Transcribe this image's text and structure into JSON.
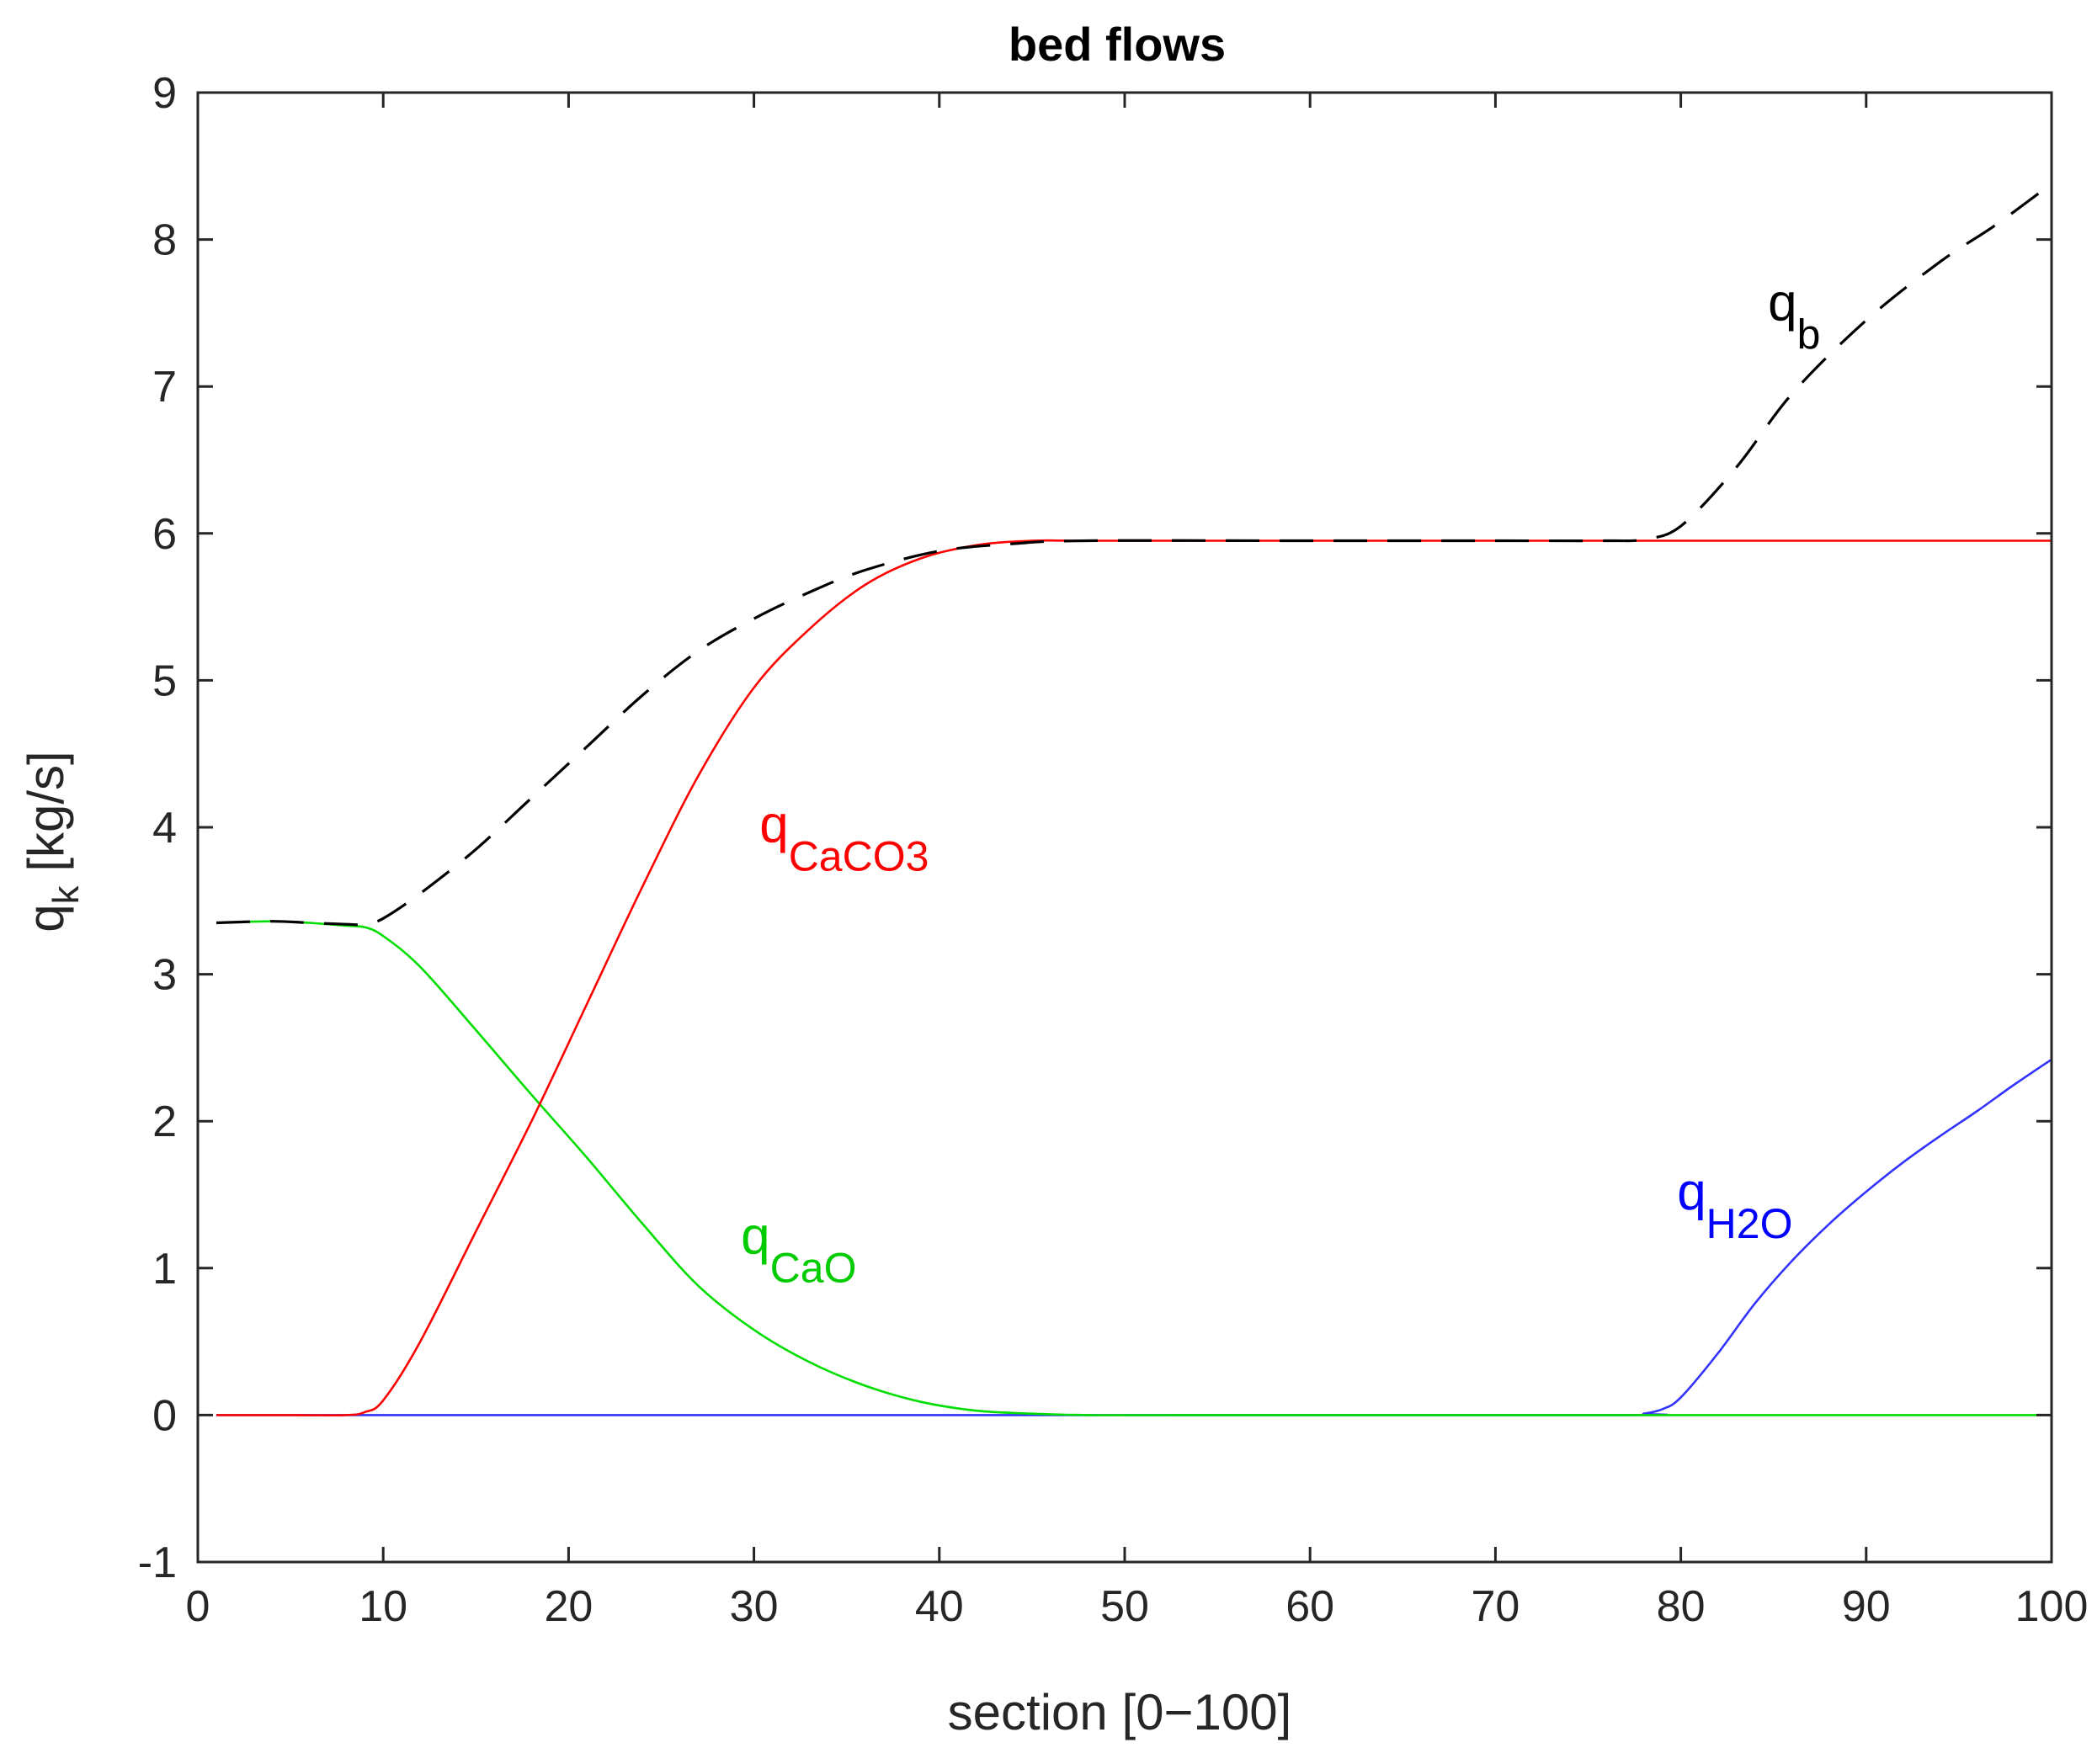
{
  "chart_data": {
    "type": "line",
    "title": "bed flows",
    "xlabel": "section [0−100]",
    "ylabel": {
      "main": "q",
      "sub": "k",
      "rest": " [kg/s]"
    },
    "xlim": [
      0,
      100
    ],
    "ylim": [
      -1,
      9
    ],
    "xticks": [
      0,
      10,
      20,
      30,
      40,
      50,
      60,
      70,
      80,
      90,
      100
    ],
    "yticks": [
      -1,
      0,
      1,
      2,
      3,
      4,
      5,
      6,
      7,
      8,
      9
    ],
    "xtick_labels": [
      "0",
      "10",
      "20",
      "30",
      "40",
      "50",
      "60",
      "70",
      "80",
      "90",
      "100"
    ],
    "ytick_labels": [
      "-1",
      "0",
      "1",
      "2",
      "3",
      "4",
      "5",
      "6",
      "7",
      "8",
      "9"
    ],
    "grid": false,
    "legend": "none",
    "series": [
      {
        "key": "qb",
        "color": "#000000",
        "dash": true,
        "x": [
          1,
          4,
          6,
          8,
          9,
          10,
          12,
          15,
          18,
          21,
          24,
          27,
          30,
          33,
          36,
          40,
          44,
          48,
          60,
          70,
          76,
          78,
          80,
          83,
          86,
          90,
          94,
          97,
          100
        ],
        "y": [
          3.35,
          3.36,
          3.35,
          3.34,
          3.34,
          3.38,
          3.55,
          3.85,
          4.2,
          4.55,
          4.9,
          5.2,
          5.42,
          5.6,
          5.75,
          5.88,
          5.93,
          5.95,
          5.95,
          5.95,
          5.95,
          5.96,
          6.05,
          6.45,
          6.95,
          7.45,
          7.85,
          8.1,
          8.38
        ]
      },
      {
        "key": "qCaCO3",
        "color": "#ff0000",
        "dash": false,
        "x": [
          1,
          5,
          8,
          9,
          10,
          12,
          15,
          18,
          21,
          24,
          27,
          30,
          33,
          36,
          39,
          42,
          45,
          48,
          60,
          80,
          100
        ],
        "y": [
          0,
          0,
          0,
          0.02,
          0.1,
          0.5,
          1.25,
          2.0,
          2.8,
          3.6,
          4.35,
          4.95,
          5.35,
          5.65,
          5.83,
          5.92,
          5.95,
          5.95,
          5.95,
          5.95,
          5.95
        ]
      },
      {
        "key": "qCaO",
        "color": "#00dd00",
        "dash": false,
        "x": [
          1,
          4,
          6,
          8,
          9,
          10,
          12,
          15,
          18,
          21,
          24,
          27,
          30,
          33,
          36,
          39,
          42,
          45,
          48,
          55,
          100
        ],
        "y": [
          3.35,
          3.36,
          3.35,
          3.33,
          3.32,
          3.26,
          3.05,
          2.62,
          2.18,
          1.75,
          1.3,
          0.88,
          0.58,
          0.36,
          0.2,
          0.09,
          0.03,
          0.01,
          0,
          0,
          0
        ]
      },
      {
        "key": "qH2O",
        "color": "#3333ff",
        "dash": false,
        "x": [
          1,
          50,
          77,
          78,
          79,
          80,
          82,
          84,
          86,
          88,
          90,
          92,
          94,
          96,
          98,
          100
        ],
        "y": [
          0,
          0,
          0,
          0.01,
          0.04,
          0.12,
          0.42,
          0.76,
          1.05,
          1.3,
          1.52,
          1.72,
          1.9,
          2.07,
          2.25,
          2.42
        ]
      }
    ],
    "annotations": [
      {
        "key": "qb",
        "main": "q",
        "sub": "b",
        "x": 84.7,
        "y": 7.45,
        "color": "#000000"
      },
      {
        "key": "qCaCO3",
        "main": "q",
        "sub": "CaCO3",
        "x": 30.3,
        "y": 3.9,
        "color": "#ff0000"
      },
      {
        "key": "qCaO",
        "main": "q",
        "sub": "CaO",
        "x": 29.3,
        "y": 1.1,
        "color": "#00cc00"
      },
      {
        "key": "qH2O",
        "main": "q",
        "sub": "H2O",
        "x": 79.8,
        "y": 1.4,
        "color": "#0000ff"
      }
    ]
  }
}
